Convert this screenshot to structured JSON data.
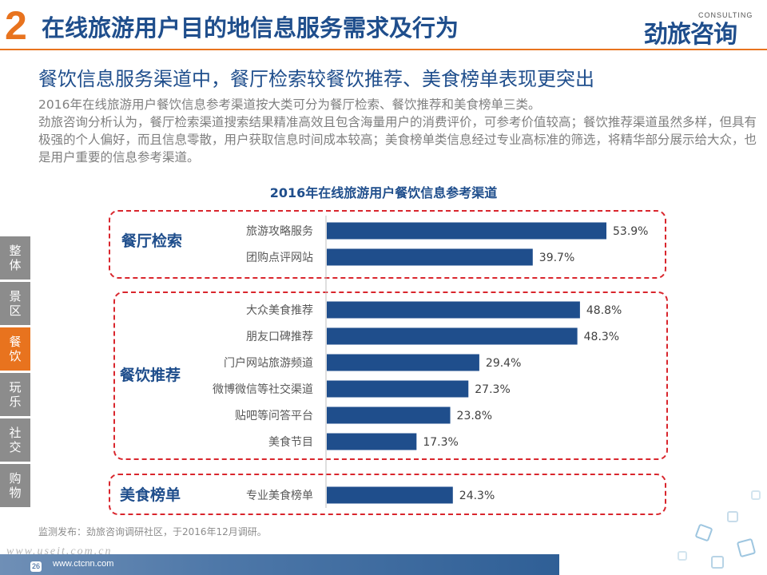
{
  "header": {
    "section_number": "2",
    "title": "在线旅游用户目的地信息服务需求及行为",
    "logo_cn": "劲旅咨询",
    "logo_en": "CONSULTING"
  },
  "subtitle": "餐饮信息服务渠道中，餐厅检索较餐饮推荐、美食榜单表现更突出",
  "body": {
    "para1": "2016年在线旅游用户餐饮信息参考渠道按大类可分为餐厅检索、餐饮推荐和美食榜单三类。",
    "para2": "劲旅咨询分析认为，餐厅检索渠道搜索结果精准高效且包含海量用户的消费评价，可参考价值较高；餐饮推荐渠道虽然多样，但具有极强的个人偏好，而且信息零散，用户获取信息时间成本较高；美食榜单类信息经过专业高标准的筛选，将精华部分展示给大众，也是用户重要的信息参考渠道。"
  },
  "side_tabs": [
    {
      "line1": "整",
      "line2": "体",
      "active": false
    },
    {
      "line1": "景",
      "line2": "区",
      "active": false
    },
    {
      "line1": "餐",
      "line2": "饮",
      "active": true
    },
    {
      "line1": "玩",
      "line2": "乐",
      "active": false
    },
    {
      "line1": "社",
      "line2": "交",
      "active": false
    },
    {
      "line1": "购",
      "line2": "物",
      "active": false
    }
  ],
  "chart_data": {
    "type": "bar",
    "orientation": "horizontal",
    "title": "2016年在线旅游用户餐饮信息参考渠道",
    "categories": [
      "旅游攻略服务",
      "团购点评网站",
      "大众美食推荐",
      "朋友口碑推荐",
      "门户网站旅游频道",
      "微博微信等社交渠道",
      "贴吧等问答平台",
      "美食节目",
      "专业美食榜单"
    ],
    "values": [
      53.9,
      39.7,
      48.8,
      48.3,
      29.4,
      27.3,
      23.8,
      17.3,
      24.3
    ],
    "value_labels": [
      "53.9%",
      "39.7%",
      "48.8%",
      "48.3%",
      "29.4%",
      "27.3%",
      "23.8%",
      "17.3%",
      "24.3%"
    ],
    "unit": "%",
    "groups": [
      {
        "name": "餐厅检索",
        "items": [
          0,
          1
        ]
      },
      {
        "name": "餐饮推荐",
        "items": [
          2,
          3,
          4,
          5,
          6,
          7
        ]
      },
      {
        "name": "美食榜单",
        "items": [
          8
        ]
      }
    ],
    "xlim": [
      0,
      60
    ],
    "bar_color": "#1f4e8c",
    "group_border_color": "#d9262d",
    "grid": false
  },
  "source": "监测发布：劲旅咨询调研社区，于2016年12月调研。",
  "footer": {
    "page": "26",
    "url": "www.ctcnn.com",
    "watermark": "www.useit.com.cn"
  },
  "colors": {
    "accent": "#e8731e",
    "brand": "#1f4e8c",
    "text_gray": "#7f7f7f",
    "tab_gray": "#8c8c8c"
  }
}
